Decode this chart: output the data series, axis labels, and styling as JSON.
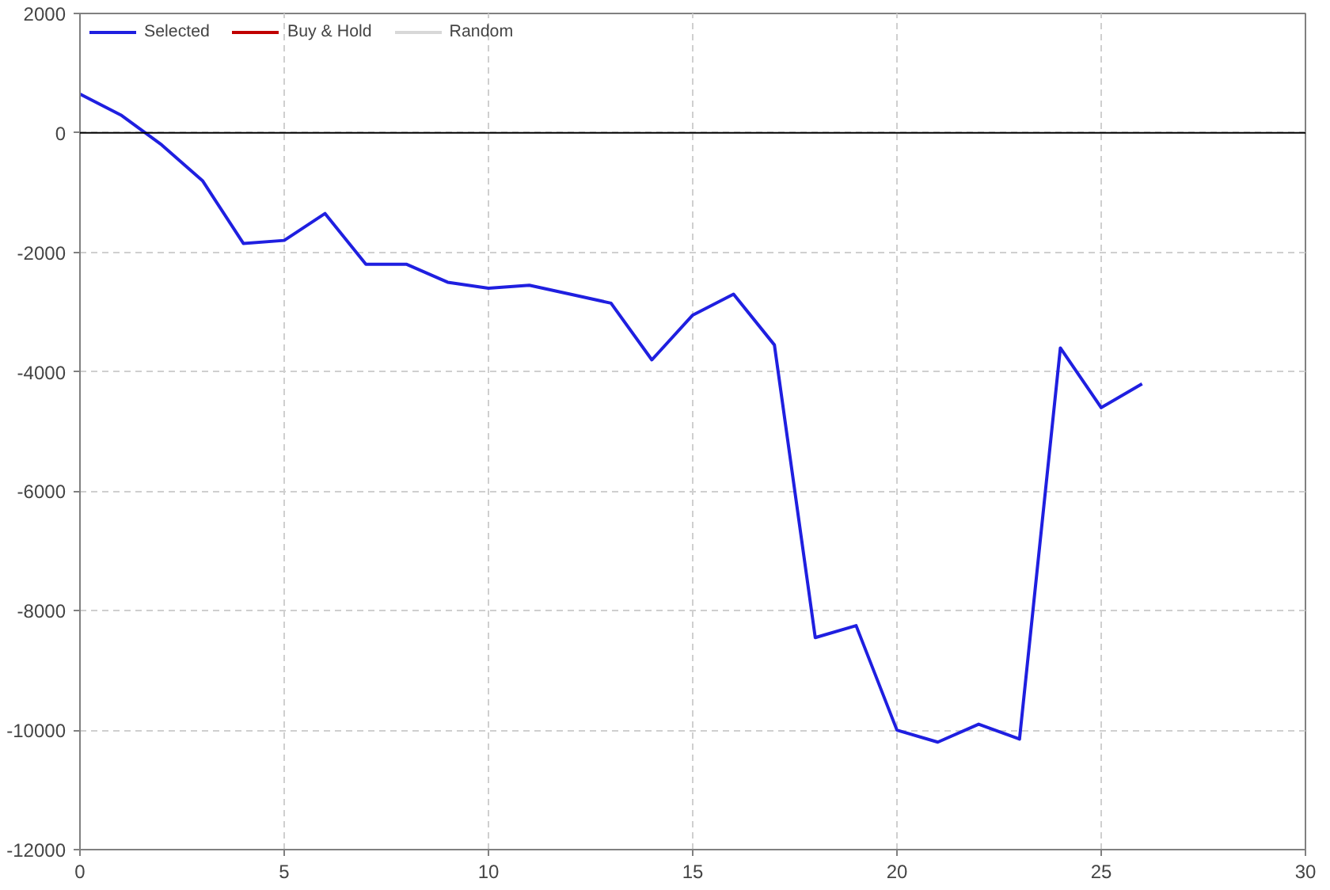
{
  "chart_data": {
    "type": "line",
    "x": [
      0,
      1,
      2,
      3,
      4,
      5,
      6,
      7,
      8,
      9,
      10,
      11,
      12,
      13,
      14,
      15,
      16,
      17,
      18,
      19,
      20,
      21,
      22,
      23,
      24,
      25,
      26
    ],
    "series": [
      {
        "name": "Selected",
        "color": "#1f1fe0",
        "values": [
          650,
          300,
          -200,
          -800,
          -1850,
          -1800,
          -1350,
          -2200,
          -2200,
          -2500,
          -2600,
          -2550,
          -2700,
          -2850,
          -3800,
          -3050,
          -2700,
          -3550,
          -8450,
          -8250,
          -10000,
          -10200,
          -9900,
          -10150,
          -3600,
          -4600,
          -4200
        ]
      },
      {
        "name": "Buy & Hold",
        "color": "#c00000",
        "values": [
          null,
          null,
          null,
          null,
          null,
          null,
          null,
          null,
          null,
          null,
          null,
          null,
          null,
          null,
          null,
          null,
          null,
          null,
          null,
          null,
          null,
          null,
          null,
          null,
          null,
          null,
          null
        ]
      },
      {
        "name": "Random",
        "color": "#d8d8d8",
        "values": [
          null,
          null,
          null,
          null,
          null,
          null,
          null,
          null,
          null,
          null,
          null,
          null,
          null,
          null,
          null,
          null,
          null,
          null,
          null,
          null,
          null,
          null,
          null,
          null,
          null,
          null,
          null
        ]
      }
    ],
    "xlim": [
      0,
      30
    ],
    "xticks": [
      0,
      5,
      10,
      15,
      20,
      25,
      30
    ],
    "ylim": [
      -12000,
      2000
    ],
    "yticks": [
      -12000,
      -10000,
      -8000,
      -6000,
      -4000,
      -2000,
      0,
      2000
    ],
    "ref_lines": [
      {
        "axis": "y",
        "value": 0,
        "color": "#000000"
      }
    ],
    "grid": true,
    "legend": "top left",
    "line_style": "solid",
    "marker": "none"
  }
}
